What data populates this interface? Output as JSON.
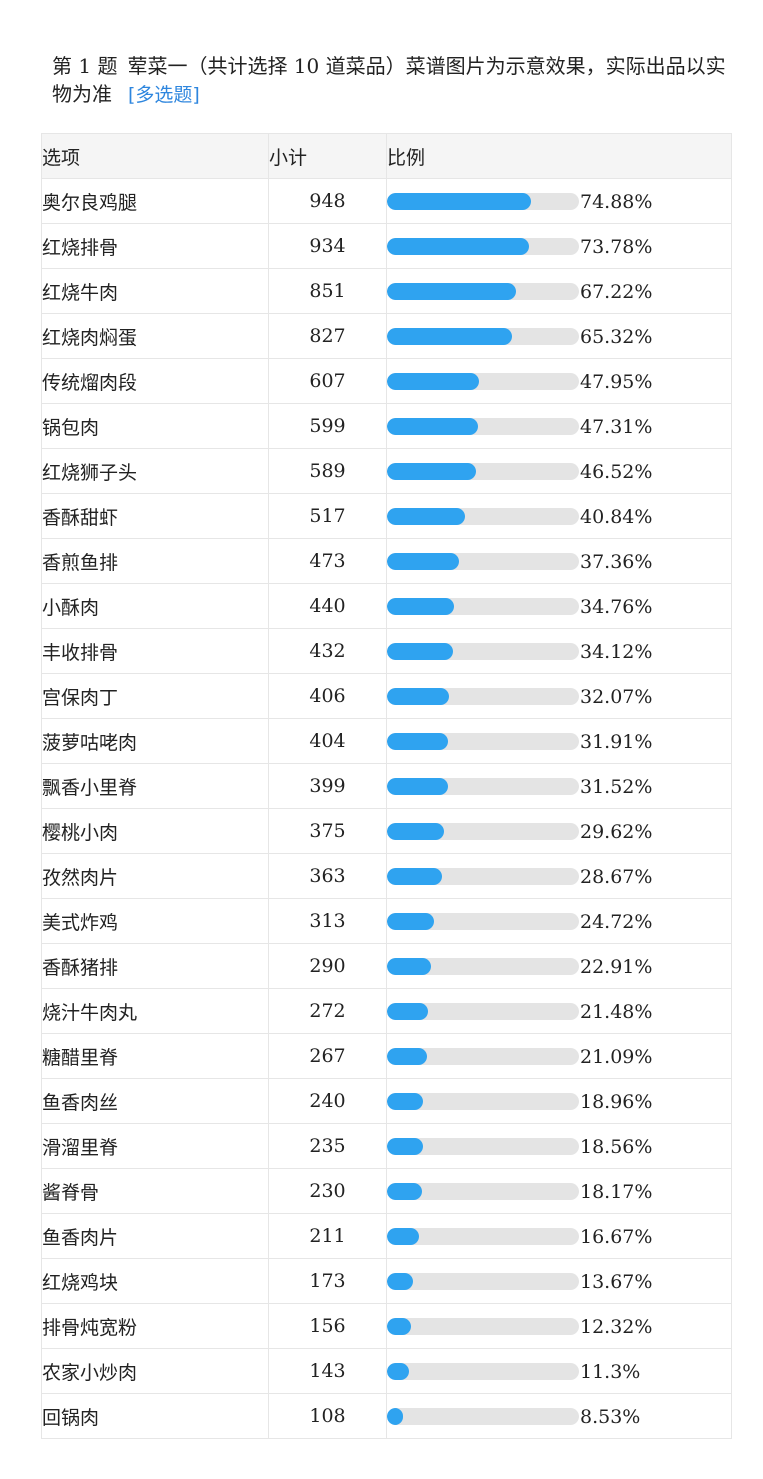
{
  "question": {
    "number": "第 1 题",
    "title": "荤菜一（共计选择 10 道菜品）菜谱图片为示意效果，实际出品以实物为准",
    "tag": "[多选题]"
  },
  "table": {
    "headers": {
      "option": "选项",
      "count": "小计",
      "ratio": "比例"
    },
    "rows": [
      {
        "option": "奥尔良鸡腿",
        "count": "948",
        "pct_label": "74.88%",
        "pct": 74.88
      },
      {
        "option": "红烧排骨",
        "count": "934",
        "pct_label": "73.78%",
        "pct": 73.78
      },
      {
        "option": "红烧牛肉",
        "count": "851",
        "pct_label": "67.22%",
        "pct": 67.22
      },
      {
        "option": "红烧肉焖蛋",
        "count": "827",
        "pct_label": "65.32%",
        "pct": 65.32
      },
      {
        "option": "传统熘肉段",
        "count": "607",
        "pct_label": "47.95%",
        "pct": 47.95
      },
      {
        "option": "锅包肉",
        "count": "599",
        "pct_label": "47.31%",
        "pct": 47.31
      },
      {
        "option": "红烧狮子头",
        "count": "589",
        "pct_label": "46.52%",
        "pct": 46.52
      },
      {
        "option": "香酥甜虾",
        "count": "517",
        "pct_label": "40.84%",
        "pct": 40.84
      },
      {
        "option": "香煎鱼排",
        "count": "473",
        "pct_label": "37.36%",
        "pct": 37.36
      },
      {
        "option": "小酥肉",
        "count": "440",
        "pct_label": "34.76%",
        "pct": 34.76
      },
      {
        "option": "丰收排骨",
        "count": "432",
        "pct_label": "34.12%",
        "pct": 34.12
      },
      {
        "option": "宫保肉丁",
        "count": "406",
        "pct_label": "32.07%",
        "pct": 32.07
      },
      {
        "option": "菠萝咕咾肉",
        "count": "404",
        "pct_label": "31.91%",
        "pct": 31.91
      },
      {
        "option": "飘香小里脊",
        "count": "399",
        "pct_label": "31.52%",
        "pct": 31.52
      },
      {
        "option": "樱桃小肉",
        "count": "375",
        "pct_label": "29.62%",
        "pct": 29.62
      },
      {
        "option": "孜然肉片",
        "count": "363",
        "pct_label": "28.67%",
        "pct": 28.67
      },
      {
        "option": "美式炸鸡",
        "count": "313",
        "pct_label": "24.72%",
        "pct": 24.72
      },
      {
        "option": "香酥猪排",
        "count": "290",
        "pct_label": "22.91%",
        "pct": 22.91
      },
      {
        "option": "烧汁牛肉丸",
        "count": "272",
        "pct_label": "21.48%",
        "pct": 21.48
      },
      {
        "option": "糖醋里脊",
        "count": "267",
        "pct_label": "21.09%",
        "pct": 21.09
      },
      {
        "option": "鱼香肉丝",
        "count": "240",
        "pct_label": "18.96%",
        "pct": 18.96
      },
      {
        "option": "滑溜里脊",
        "count": "235",
        "pct_label": "18.56%",
        "pct": 18.56
      },
      {
        "option": "酱脊骨",
        "count": "230",
        "pct_label": "18.17%",
        "pct": 18.17
      },
      {
        "option": "鱼香肉片",
        "count": "211",
        "pct_label": "16.67%",
        "pct": 16.67
      },
      {
        "option": "红烧鸡块",
        "count": "173",
        "pct_label": "13.67%",
        "pct": 13.67
      },
      {
        "option": "排骨炖宽粉",
        "count": "156",
        "pct_label": "12.32%",
        "pct": 12.32
      },
      {
        "option": "农家小炒肉",
        "count": "143",
        "pct_label": "11.3%",
        "pct": 11.3
      },
      {
        "option": "回锅肉",
        "count": "108",
        "pct_label": "8.53%",
        "pct": 8.53
      }
    ]
  },
  "colors": {
    "bar_fill": "#2fa3f0",
    "bar_track": "#e4e4e4",
    "tag": "#2e86de",
    "header_bg": "#f5f5f5"
  }
}
